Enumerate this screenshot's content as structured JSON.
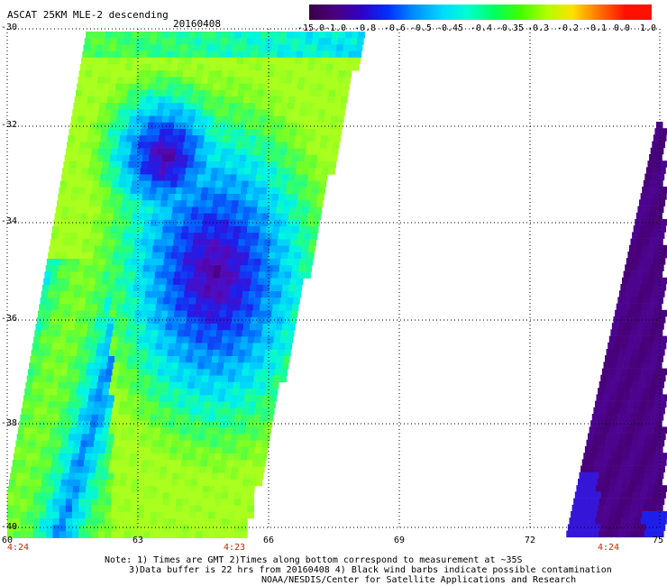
{
  "title": "ASCAT 25KM MLE-2 descending",
  "date": "20160408",
  "colorbar": {
    "labels": [
      "-15.0",
      "-1.0",
      "-0.8",
      "-0.6",
      "-0.5",
      "-0.45",
      "-0.4",
      "-0.35",
      "-0.3",
      "-0.2",
      "-0.1",
      "0.0",
      "1.0"
    ],
    "colors": [
      "#3a0048",
      "#4a0080",
      "#3000c8",
      "#0030ff",
      "#0090ff",
      "#00d8ff",
      "#00ffd0",
      "#00ff60",
      "#40ff00",
      "#b0ff00",
      "#ffe000",
      "#ff7000",
      "#ff1000"
    ]
  },
  "map": {
    "lat_labels": [
      "-30",
      "-32",
      "-34",
      "-36",
      "-38",
      "-40"
    ],
    "lon_labels": [
      "60",
      "63",
      "66",
      "69",
      "72",
      "75"
    ],
    "time_labels": [
      "4:24",
      "4:23",
      "4:24"
    ]
  },
  "notes": [
    "Note: 1) Times are GMT 2)Times along bottom correspond to measurement at ~35S",
    "3)Data buffer is 22 hrs from 20160408 4) Black wind barbs indicate possible contamination",
    "NOAA/NESDIS/Center for Satellite Applications and Research"
  ]
}
